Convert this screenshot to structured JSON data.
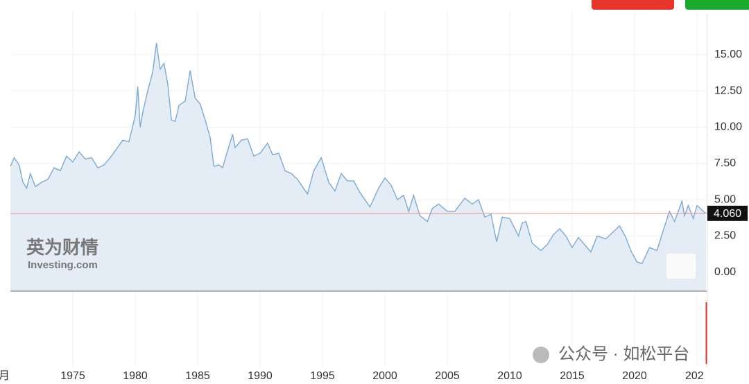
{
  "chart_data": {
    "type": "line",
    "color": "#7aaad3",
    "area_color": "#e4edf6",
    "x": [
      1970.0,
      1970.3,
      1970.7,
      1971.0,
      1971.3,
      1971.6,
      1972.0,
      1972.5,
      1973.0,
      1973.5,
      1974.0,
      1974.5,
      1975.0,
      1975.5,
      1976.0,
      1976.5,
      1977.0,
      1977.5,
      1978.0,
      1978.5,
      1979.0,
      1979.5,
      1980.0,
      1980.2,
      1980.4,
      1980.6,
      1981.0,
      1981.4,
      1981.7,
      1982.0,
      1982.3,
      1982.6,
      1982.9,
      1983.2,
      1983.5,
      1984.0,
      1984.4,
      1984.8,
      1985.2,
      1985.6,
      1986.0,
      1986.3,
      1986.7,
      1987.0,
      1987.4,
      1987.8,
      1988.0,
      1988.5,
      1989.0,
      1989.5,
      1990.0,
      1990.6,
      1991.0,
      1991.5,
      1992.0,
      1992.5,
      1993.0,
      1993.8,
      1994.3,
      1994.9,
      1995.5,
      1996.0,
      1996.5,
      1997.0,
      1997.5,
      1998.0,
      1998.8,
      1999.5,
      2000.0,
      2000.5,
      2001.0,
      2001.5,
      2001.9,
      2002.3,
      2002.8,
      2003.4,
      2003.8,
      2004.3,
      2005.0,
      2005.6,
      2006.4,
      2007.0,
      2007.5,
      2008.0,
      2008.5,
      2008.95,
      2009.4,
      2010.0,
      2010.7,
      2011.0,
      2011.3,
      2011.8,
      2012.5,
      2013.0,
      2013.5,
      2014.0,
      2014.5,
      2015.0,
      2015.5,
      2016.5,
      2017.0,
      2017.7,
      2018.8,
      2019.3,
      2019.7,
      2020.2,
      2020.6,
      2021.2,
      2021.8,
      2022.3,
      2022.8,
      2023.2,
      2023.8,
      2024.0,
      2024.3,
      2024.7,
      2025.0,
      2025.7
    ],
    "values": [
      7.3,
      7.9,
      7.4,
      6.2,
      5.8,
      6.8,
      5.9,
      6.2,
      6.4,
      7.2,
      7.0,
      8.0,
      7.6,
      8.3,
      7.8,
      7.9,
      7.2,
      7.4,
      7.9,
      8.5,
      9.1,
      9.0,
      10.8,
      12.8,
      10.0,
      11.0,
      12.5,
      13.8,
      15.8,
      14.0,
      14.4,
      13.0,
      10.5,
      10.4,
      11.5,
      11.8,
      13.9,
      12.0,
      11.6,
      10.5,
      9.3,
      7.3,
      7.4,
      7.2,
      8.4,
      9.5,
      8.6,
      9.1,
      9.2,
      8.0,
      8.2,
      8.9,
      8.1,
      8.2,
      7.0,
      6.8,
      6.4,
      5.4,
      7.0,
      7.9,
      6.2,
      5.6,
      6.8,
      6.3,
      6.3,
      5.5,
      4.5,
      5.8,
      6.5,
      6.0,
      5.0,
      5.3,
      4.2,
      5.3,
      3.9,
      3.5,
      4.4,
      4.7,
      4.2,
      4.2,
      5.1,
      4.7,
      5.0,
      3.8,
      4.0,
      2.1,
      3.8,
      3.7,
      2.5,
      3.4,
      3.5,
      2.0,
      1.5,
      1.9,
      2.6,
      3.0,
      2.5,
      1.7,
      2.4,
      1.4,
      2.5,
      2.3,
      3.2,
      2.4,
      1.5,
      0.7,
      0.6,
      1.7,
      1.5,
      2.9,
      4.2,
      3.5,
      4.9,
      3.9,
      4.6,
      3.7,
      4.6,
      4.06
    ],
    "xlim": [
      1970,
      2025.8
    ],
    "xticks": [
      1975,
      1980,
      1985,
      1990,
      1995,
      2000,
      2005,
      2010,
      2015,
      2020,
      {
        "value": 2025,
        "label": "202"
      }
    ],
    "ylim": [
      -1.3,
      18
    ],
    "yticks": [
      {
        "value": 0,
        "label": "0.00"
      },
      {
        "value": 2.5,
        "label": "2.50"
      },
      {
        "value": 5,
        "label": "5.00"
      },
      {
        "value": 7.5,
        "label": "7.50"
      },
      {
        "value": 10,
        "label": "10.00"
      },
      {
        "value": 12.5,
        "label": "12.50"
      },
      {
        "value": 15,
        "label": "15.00"
      }
    ],
    "grid": true,
    "current": {
      "value": 4.06,
      "label": "4.060"
    },
    "left_label": "月",
    "watermark": {
      "brand": "英为财情",
      "site": "Investing.com"
    },
    "credit": "公众号 · 如松平台"
  }
}
